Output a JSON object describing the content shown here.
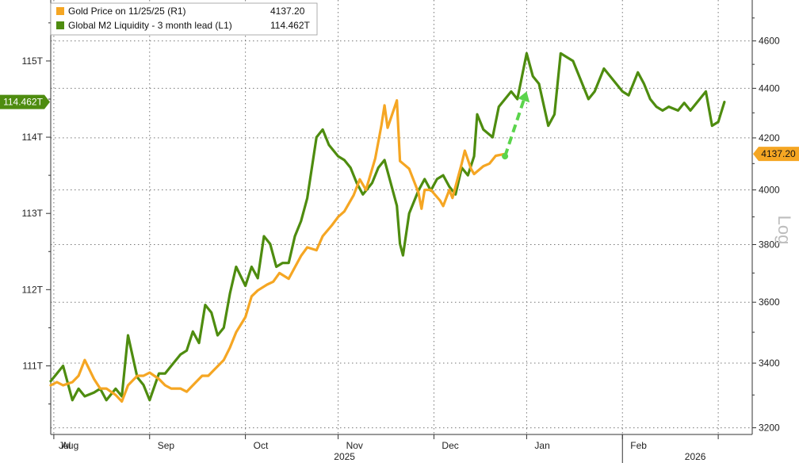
{
  "chart_data": {
    "type": "line",
    "title": "",
    "legend": {
      "placement": "top-left",
      "entries": [
        {
          "label": "Gold Price on 11/25/25 (R1)",
          "value": "4137.20",
          "color": "#f5a623"
        },
        {
          "label": "Global M2 Liquidity - 3 month lead (L1)",
          "value": "114.462T",
          "color": "#4e8c0f"
        }
      ]
    },
    "left_axis": {
      "ticks": [
        111,
        112,
        113,
        114,
        115
      ],
      "tick_labels": [
        "111T",
        "112T",
        "113T",
        "114T",
        "115T"
      ],
      "ylim": [
        110.1,
        115.8
      ],
      "current_value_label": "114.462T",
      "current_value": 114.462
    },
    "right_axis": {
      "scale": "log",
      "label": "Log",
      "ticks": [
        3200,
        3400,
        3600,
        3800,
        4000,
        4200,
        4400,
        4600
      ],
      "tick_labels": [
        "3200",
        "3400",
        "3600",
        "3800",
        "4000",
        "4200",
        "4400",
        "4600"
      ],
      "ylim": [
        3180,
        4780
      ],
      "current_value_label": "4137.20",
      "current_value": 4137.2
    },
    "x_axis": {
      "month_labels": [
        "Jul",
        "Aug",
        "Sep",
        "Oct",
        "Nov",
        "Dec",
        "Jan",
        "Feb"
      ],
      "year_labels": [
        "2025",
        "2026"
      ],
      "xlim": [
        "2025-06-30",
        "2026-02-12"
      ]
    },
    "grid": true,
    "series": [
      {
        "name": "Global M2 Liquidity - 3 month lead (L1)",
        "axis": "left",
        "color": "#4e8c0f",
        "points": [
          [
            "2025-06-30",
            110.8
          ],
          [
            "2025-07-02",
            110.9
          ],
          [
            "2025-07-04",
            111.0
          ],
          [
            "2025-07-07",
            110.55
          ],
          [
            "2025-07-09",
            110.7
          ],
          [
            "2025-07-11",
            110.6
          ],
          [
            "2025-07-14",
            110.65
          ],
          [
            "2025-07-16",
            110.7
          ],
          [
            "2025-07-18",
            110.55
          ],
          [
            "2025-07-21",
            110.7
          ],
          [
            "2025-07-23",
            110.6
          ],
          [
            "2025-07-25",
            111.4
          ],
          [
            "2025-07-28",
            110.85
          ],
          [
            "2025-07-30",
            110.75
          ],
          [
            "2025-08-01",
            110.55
          ],
          [
            "2025-08-04",
            110.9
          ],
          [
            "2025-08-06",
            110.9
          ],
          [
            "2025-08-08",
            111.0
          ],
          [
            "2025-08-11",
            111.15
          ],
          [
            "2025-08-13",
            111.2
          ],
          [
            "2025-08-15",
            111.45
          ],
          [
            "2025-08-17",
            111.3
          ],
          [
            "2025-08-19",
            111.8
          ],
          [
            "2025-08-21",
            111.7
          ],
          [
            "2025-08-23",
            111.4
          ],
          [
            "2025-08-25",
            111.5
          ],
          [
            "2025-08-27",
            111.95
          ],
          [
            "2025-08-29",
            112.3
          ],
          [
            "2025-09-01",
            112.05
          ],
          [
            "2025-09-03",
            112.3
          ],
          [
            "2025-09-05",
            112.15
          ],
          [
            "2025-09-07",
            112.7
          ],
          [
            "2025-09-09",
            112.6
          ],
          [
            "2025-09-11",
            112.3
          ],
          [
            "2025-09-13",
            112.35
          ],
          [
            "2025-09-15",
            112.35
          ],
          [
            "2025-09-17",
            112.7
          ],
          [
            "2025-09-19",
            112.9
          ],
          [
            "2025-09-21",
            113.2
          ],
          [
            "2025-09-24",
            114.0
          ],
          [
            "2025-09-26",
            114.1
          ],
          [
            "2025-09-28",
            113.9
          ],
          [
            "2025-10-01",
            113.75
          ],
          [
            "2025-10-03",
            113.7
          ],
          [
            "2025-10-05",
            113.6
          ],
          [
            "2025-10-07",
            113.4
          ],
          [
            "2025-10-09",
            113.25
          ],
          [
            "2025-10-12",
            113.4
          ],
          [
            "2025-10-14",
            113.6
          ],
          [
            "2025-10-16",
            113.7
          ],
          [
            "2025-10-18",
            113.4
          ],
          [
            "2025-10-20",
            113.1
          ],
          [
            "2025-10-21",
            112.6
          ],
          [
            "2025-10-22",
            112.45
          ],
          [
            "2025-10-24",
            113.0
          ],
          [
            "2025-10-27",
            113.3
          ],
          [
            "2025-10-29",
            113.45
          ],
          [
            "2025-10-31",
            113.3
          ],
          [
            "2025-11-02",
            113.45
          ],
          [
            "2025-11-04",
            113.5
          ],
          [
            "2025-11-06",
            113.35
          ],
          [
            "2025-11-08",
            113.25
          ],
          [
            "2025-11-10",
            113.6
          ],
          [
            "2025-11-12",
            113.5
          ],
          [
            "2025-11-14",
            113.75
          ],
          [
            "2025-11-15",
            114.3
          ],
          [
            "2025-11-17",
            114.1
          ],
          [
            "2025-11-20",
            114.0
          ],
          [
            "2025-11-22",
            114.4
          ],
          [
            "2025-11-24",
            114.5
          ],
          [
            "2025-11-26",
            114.6
          ],
          [
            "2025-11-28",
            114.5
          ],
          [
            "2025-12-01",
            115.1
          ],
          [
            "2025-12-03",
            114.8
          ],
          [
            "2025-12-05",
            114.7
          ],
          [
            "2025-12-08",
            114.15
          ],
          [
            "2025-12-10",
            114.3
          ],
          [
            "2025-12-12",
            115.1
          ],
          [
            "2025-12-14",
            115.05
          ],
          [
            "2025-12-16",
            115.0
          ],
          [
            "2025-12-18",
            114.8
          ],
          [
            "2025-12-21",
            114.5
          ],
          [
            "2025-12-23",
            114.6
          ],
          [
            "2025-12-26",
            114.9
          ],
          [
            "2025-12-28",
            114.8
          ],
          [
            "2026-01-01",
            114.6
          ],
          [
            "2026-01-03",
            114.55
          ],
          [
            "2026-01-06",
            114.85
          ],
          [
            "2026-01-08",
            114.7
          ],
          [
            "2026-01-10",
            114.5
          ],
          [
            "2026-01-12",
            114.4
          ],
          [
            "2026-01-14",
            114.35
          ],
          [
            "2026-01-16",
            114.4
          ],
          [
            "2026-01-19",
            114.35
          ],
          [
            "2026-01-21",
            114.45
          ],
          [
            "2026-01-23",
            114.35
          ],
          [
            "2026-01-26",
            114.5
          ],
          [
            "2026-01-28",
            114.6
          ],
          [
            "2026-01-30",
            114.15
          ],
          [
            "2026-02-01",
            114.2
          ],
          [
            "2026-02-03",
            114.462
          ]
        ]
      },
      {
        "name": "Gold Price on 11/25/25 (R1)",
        "axis": "right",
        "color": "#f5a623",
        "points": [
          [
            "2025-06-30",
            3330
          ],
          [
            "2025-07-02",
            3340
          ],
          [
            "2025-07-04",
            3330
          ],
          [
            "2025-07-07",
            3340
          ],
          [
            "2025-07-09",
            3360
          ],
          [
            "2025-07-11",
            3410
          ],
          [
            "2025-07-14",
            3350
          ],
          [
            "2025-07-16",
            3320
          ],
          [
            "2025-07-18",
            3320
          ],
          [
            "2025-07-21",
            3300
          ],
          [
            "2025-07-23",
            3280
          ],
          [
            "2025-07-25",
            3330
          ],
          [
            "2025-07-28",
            3360
          ],
          [
            "2025-07-30",
            3360
          ],
          [
            "2025-08-01",
            3370
          ],
          [
            "2025-08-04",
            3350
          ],
          [
            "2025-08-06",
            3330
          ],
          [
            "2025-08-08",
            3320
          ],
          [
            "2025-08-11",
            3320
          ],
          [
            "2025-08-13",
            3310
          ],
          [
            "2025-08-15",
            3330
          ],
          [
            "2025-08-18",
            3360
          ],
          [
            "2025-08-20",
            3360
          ],
          [
            "2025-08-22",
            3380
          ],
          [
            "2025-08-25",
            3410
          ],
          [
            "2025-08-27",
            3450
          ],
          [
            "2025-08-29",
            3500
          ],
          [
            "2025-09-01",
            3550
          ],
          [
            "2025-09-03",
            3620
          ],
          [
            "2025-09-05",
            3640
          ],
          [
            "2025-09-08",
            3660
          ],
          [
            "2025-09-10",
            3670
          ],
          [
            "2025-09-12",
            3700
          ],
          [
            "2025-09-15",
            3680
          ],
          [
            "2025-09-17",
            3720
          ],
          [
            "2025-09-19",
            3760
          ],
          [
            "2025-09-21",
            3790
          ],
          [
            "2025-09-24",
            3780
          ],
          [
            "2025-09-26",
            3830
          ],
          [
            "2025-09-29",
            3870
          ],
          [
            "2025-10-01",
            3900
          ],
          [
            "2025-10-03",
            3920
          ],
          [
            "2025-10-06",
            3980
          ],
          [
            "2025-10-08",
            4040
          ],
          [
            "2025-10-10",
            4000
          ],
          [
            "2025-10-13",
            4120
          ],
          [
            "2025-10-15",
            4250
          ],
          [
            "2025-10-16",
            4330
          ],
          [
            "2025-10-17",
            4240
          ],
          [
            "2025-10-20",
            4350
          ],
          [
            "2025-10-21",
            4110
          ],
          [
            "2025-10-22",
            4100
          ],
          [
            "2025-10-24",
            4080
          ],
          [
            "2025-10-27",
            3990
          ],
          [
            "2025-10-28",
            3930
          ],
          [
            "2025-10-29",
            4000
          ],
          [
            "2025-10-31",
            4000
          ],
          [
            "2025-11-03",
            3960
          ],
          [
            "2025-11-04",
            3940
          ],
          [
            "2025-11-06",
            4000
          ],
          [
            "2025-11-07",
            3970
          ],
          [
            "2025-11-10",
            4100
          ],
          [
            "2025-11-11",
            4150
          ],
          [
            "2025-11-13",
            4080
          ],
          [
            "2025-11-14",
            4060
          ],
          [
            "2025-11-17",
            4090
          ],
          [
            "2025-11-19",
            4100
          ],
          [
            "2025-11-21",
            4130
          ],
          [
            "2025-11-24",
            4137.2
          ]
        ]
      },
      {
        "name": "",
        "axis": "left",
        "color": "#5bd44c",
        "style": "dashed-arrow",
        "points": [
          [
            "2025-11-24",
            113.75
          ],
          [
            "2025-12-01",
            114.6
          ]
        ]
      }
    ]
  }
}
